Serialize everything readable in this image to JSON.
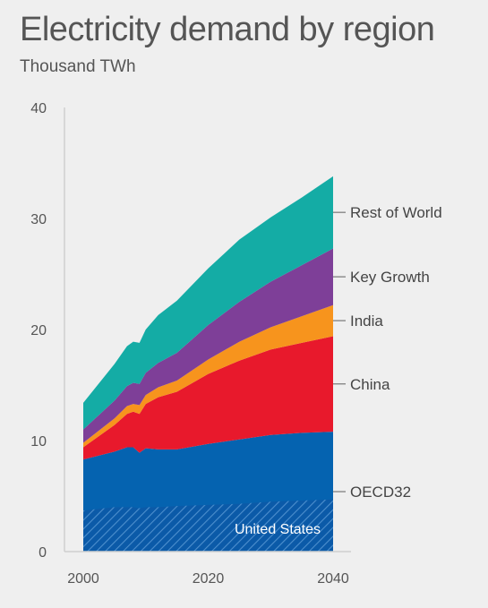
{
  "chart_data": {
    "type": "area",
    "stacked": true,
    "title": "Electricity demand by region",
    "subtitle": "Thousand TWh",
    "xlabel": "",
    "ylabel": "",
    "x": [
      2000,
      2005,
      2007,
      2008,
      2009,
      2010,
      2012,
      2015,
      2020,
      2025,
      2030,
      2035,
      2040
    ],
    "xticks": [
      2000,
      2020,
      2040
    ],
    "ylim": [
      0,
      40
    ],
    "yticks": [
      0,
      10,
      20,
      30,
      40
    ],
    "grid": false,
    "legend": "right, labels at series ends",
    "series": [
      {
        "name": "OECD32",
        "color": "#0563b0",
        "values": [
          8.3,
          9.0,
          9.4,
          9.4,
          8.9,
          9.3,
          9.2,
          9.2,
          9.7,
          10.1,
          10.5,
          10.7,
          10.8
        ]
      },
      {
        "name": "China",
        "color": "#e8192c",
        "values": [
          1.1,
          2.4,
          3.0,
          3.2,
          3.5,
          4.0,
          4.7,
          5.2,
          6.3,
          7.1,
          7.7,
          8.1,
          8.6
        ]
      },
      {
        "name": "India",
        "color": "#f7941d",
        "values": [
          0.4,
          0.6,
          0.7,
          0.7,
          0.8,
          0.8,
          0.9,
          1.0,
          1.3,
          1.7,
          2.0,
          2.4,
          2.8
        ]
      },
      {
        "name": "Key Growth",
        "color": "#7e3f98",
        "values": [
          1.2,
          1.6,
          1.8,
          1.9,
          1.9,
          2.0,
          2.2,
          2.5,
          3.1,
          3.6,
          4.1,
          4.6,
          5.1
        ]
      },
      {
        "name": "Rest of World",
        "color": "#14aca5",
        "values": [
          2.4,
          3.3,
          3.6,
          3.7,
          3.7,
          3.9,
          4.3,
          4.7,
          5.1,
          5.6,
          5.8,
          6.1,
          6.5
        ]
      }
    ],
    "highlight": {
      "name": "United States",
      "part_of": "OECD32",
      "pattern": "hatched",
      "values": [
        3.7,
        4.0,
        4.0,
        4.0,
        3.9,
        4.0,
        4.0,
        4.1,
        4.2,
        4.3,
        4.5,
        4.6,
        4.7
      ]
    }
  }
}
